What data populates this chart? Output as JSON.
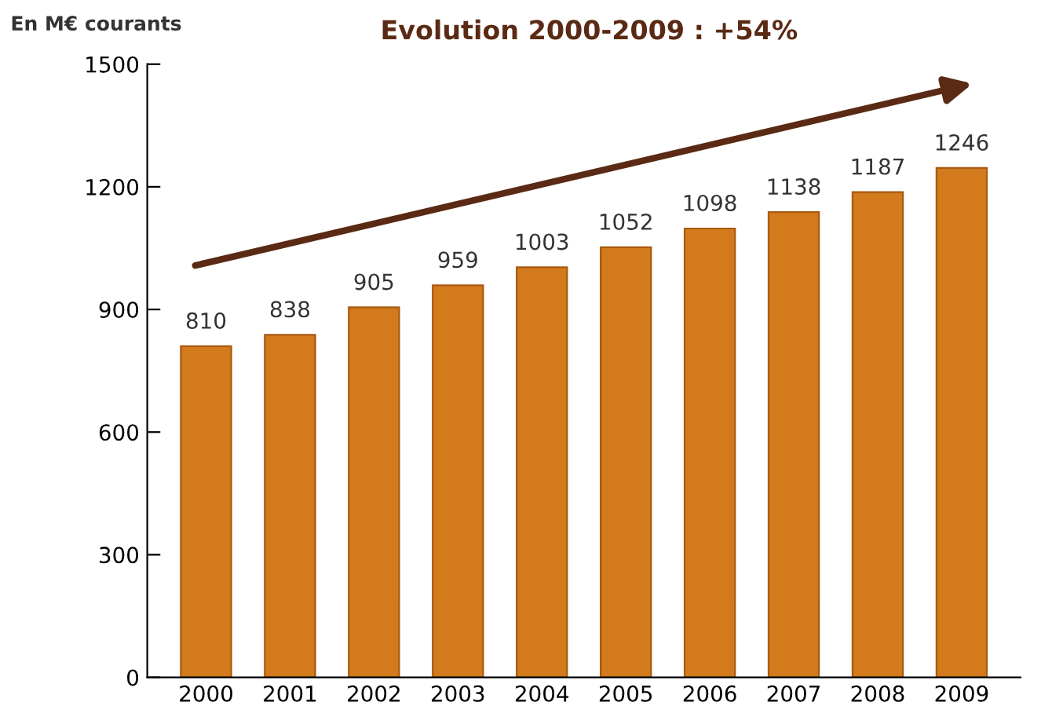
{
  "chart_data": {
    "type": "bar",
    "title": "Evolution 2000-2009 : +54%",
    "ylabel": "En M€ courants",
    "categories": [
      "2000",
      "2001",
      "2002",
      "2003",
      "2004",
      "2005",
      "2006",
      "2007",
      "2008",
      "2009"
    ],
    "values": [
      810,
      838,
      905,
      959,
      1003,
      1052,
      1098,
      1138,
      1187,
      1246
    ],
    "color": "#d27a1c",
    "ylim": [
      0,
      1500
    ],
    "yticks": [
      0,
      300,
      600,
      900,
      1200,
      1500
    ],
    "data_labels": true,
    "grid": false,
    "legend": false
  }
}
